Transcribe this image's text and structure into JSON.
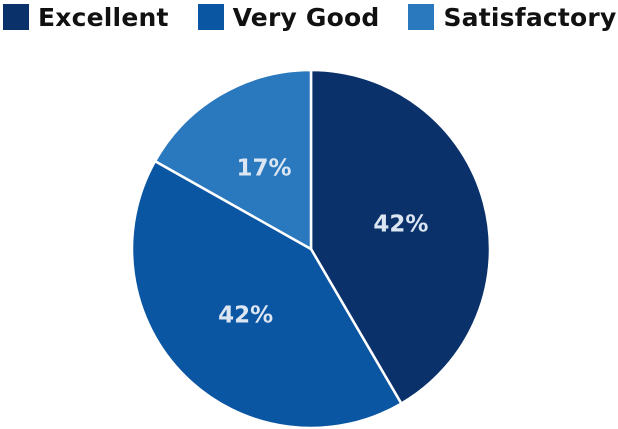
{
  "chart_data": {
    "type": "pie",
    "categories": [
      "Excellent",
      "Very Good",
      "Satisfactory"
    ],
    "values": [
      42,
      42,
      17
    ],
    "value_labels": [
      "42%",
      "42%",
      "17%"
    ],
    "colors": [
      "#0b316b",
      "#0a56a2",
      "#2a78bd"
    ],
    "legend_position": "top-left",
    "start": "top, clockwise"
  },
  "legend": {
    "items": [
      {
        "label": "Excellent",
        "color": "#0b316b"
      },
      {
        "label": "Very Good",
        "color": "#0a56a2"
      },
      {
        "label": "Satisfactory",
        "color": "#2a78bd"
      }
    ]
  }
}
